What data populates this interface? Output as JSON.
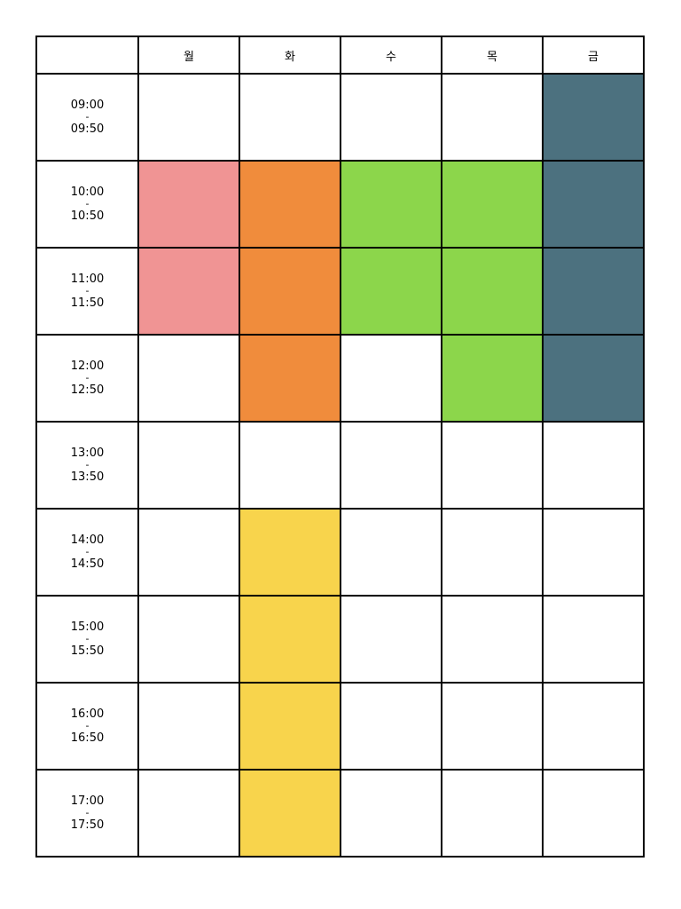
{
  "timetable": {
    "days": [
      "월",
      "화",
      "수",
      "목",
      "금"
    ],
    "separator": "-",
    "rows": [
      {
        "start": "09:00",
        "end": "09:50",
        "cells": [
          null,
          null,
          null,
          null,
          "#4c717f"
        ]
      },
      {
        "start": "10:00",
        "end": "10:50",
        "cells": [
          "#f09494",
          "#f08c3c",
          "#8cd64b",
          "#8cd64b",
          "#4c717f"
        ]
      },
      {
        "start": "11:00",
        "end": "11:50",
        "cells": [
          "#f09494",
          "#f08c3c",
          "#8cd64b",
          "#8cd64b",
          "#4c717f"
        ]
      },
      {
        "start": "12:00",
        "end": "12:50",
        "cells": [
          null,
          "#f08c3c",
          null,
          "#8cd64b",
          "#4c717f"
        ]
      },
      {
        "start": "13:00",
        "end": "13:50",
        "cells": [
          null,
          null,
          null,
          null,
          null
        ]
      },
      {
        "start": "14:00",
        "end": "14:50",
        "cells": [
          null,
          "#f8d44c",
          null,
          null,
          null
        ]
      },
      {
        "start": "15:00",
        "end": "15:50",
        "cells": [
          null,
          "#f8d44c",
          null,
          null,
          null
        ]
      },
      {
        "start": "16:00",
        "end": "16:50",
        "cells": [
          null,
          "#f8d44c",
          null,
          null,
          null
        ]
      },
      {
        "start": "17:00",
        "end": "17:50",
        "cells": [
          null,
          "#f8d44c",
          null,
          null,
          null
        ]
      }
    ]
  }
}
